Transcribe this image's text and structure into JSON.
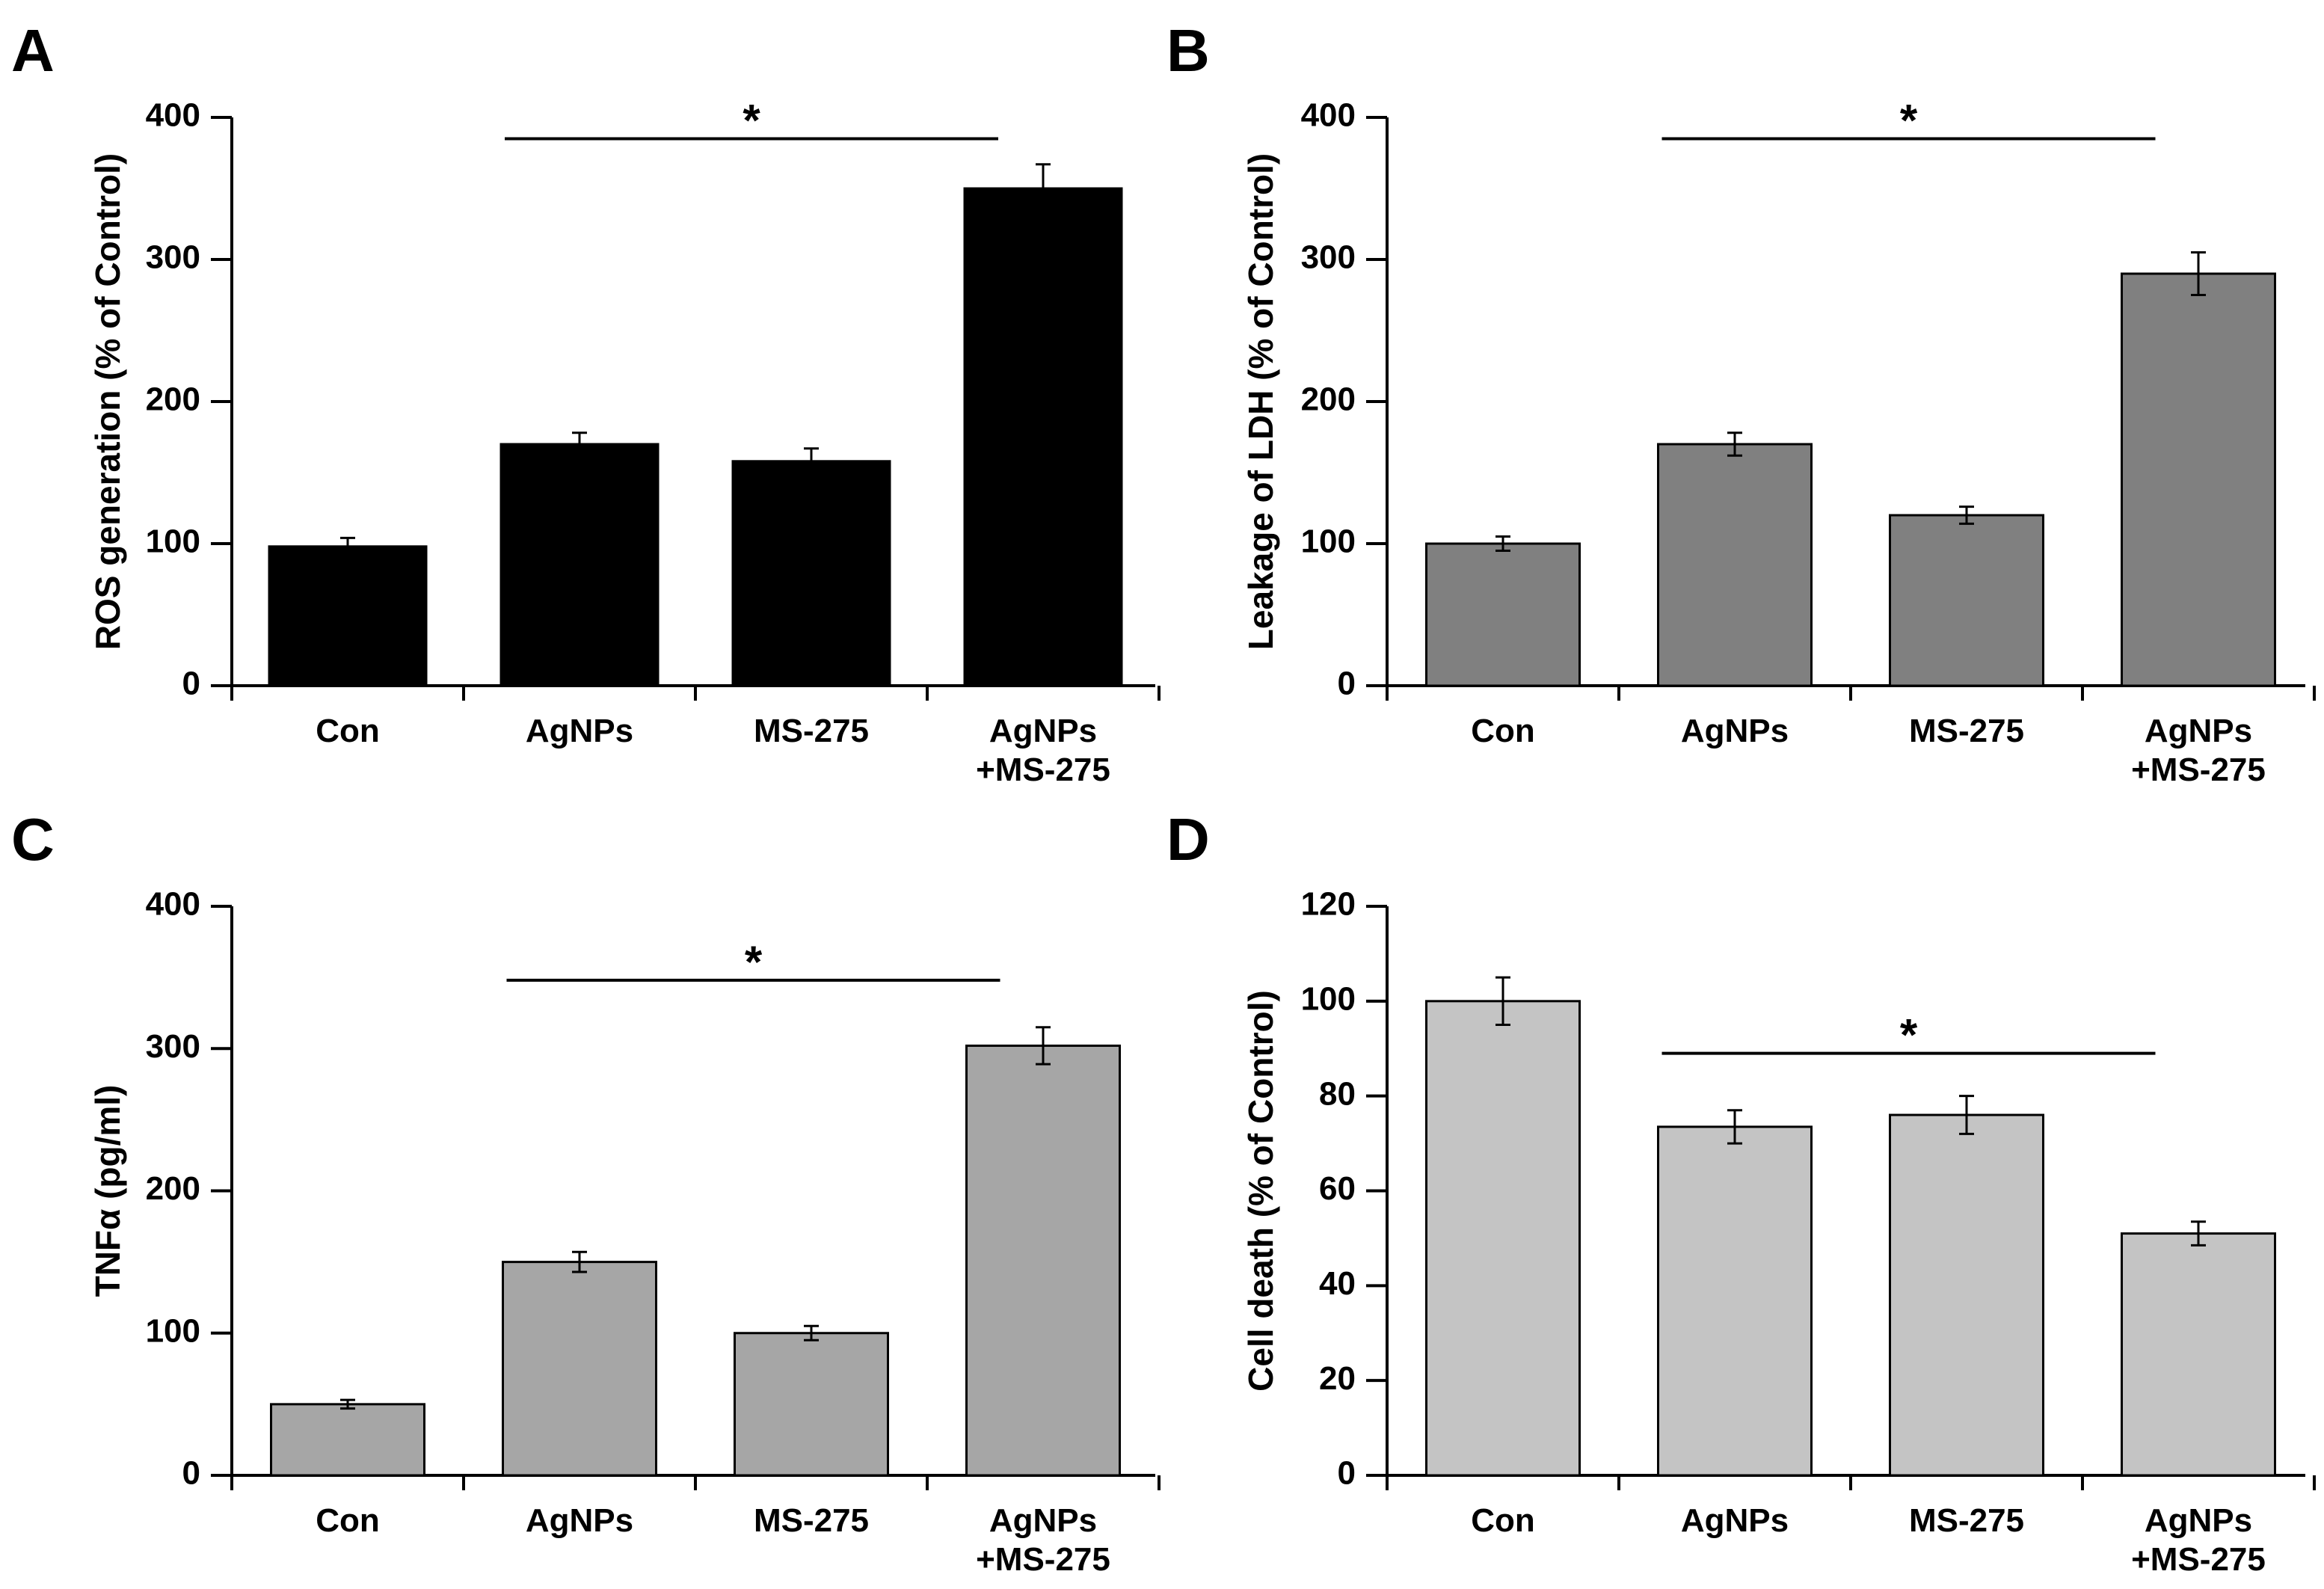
{
  "chart_data": [
    {
      "panel": "A",
      "type": "bar",
      "categories": [
        [
          "Con"
        ],
        [
          "AgNPs"
        ],
        [
          "MS-275"
        ],
        [
          "AgNPs",
          "+MS-275"
        ]
      ],
      "values": [
        98,
        170,
        158,
        350
      ],
      "errors": [
        6,
        8,
        9,
        17
      ],
      "ylabel": "ROS generation (% of Control)",
      "ylim": [
        0,
        400
      ],
      "yticks": [
        0,
        100,
        200,
        300,
        400
      ],
      "bar_color": "#000000",
      "significance": {
        "from": 1,
        "to": 3,
        "value": 385,
        "label": "*"
      }
    },
    {
      "panel": "B",
      "type": "bar",
      "categories": [
        [
          "Con"
        ],
        [
          "AgNPs"
        ],
        [
          "MS-275"
        ],
        [
          "AgNPs",
          "+MS-275"
        ]
      ],
      "values": [
        100,
        170,
        120,
        290
      ],
      "errors": [
        5,
        8,
        6,
        15
      ],
      "ylabel": "Leakage of LDH (% of Control)",
      "ylim": [
        0,
        400
      ],
      "yticks": [
        0,
        100,
        200,
        300,
        400
      ],
      "bar_color": "#808080",
      "significance": {
        "from": 1,
        "to": 3,
        "value": 385,
        "label": "*"
      }
    },
    {
      "panel": "C",
      "type": "bar",
      "categories": [
        [
          "Con"
        ],
        [
          "AgNPs"
        ],
        [
          "MS-275"
        ],
        [
          "AgNPs",
          "+MS-275"
        ]
      ],
      "values": [
        50,
        150,
        100,
        302
      ],
      "errors": [
        3,
        7,
        5,
        13
      ],
      "ylabel": "TNFα (pg/ml)",
      "ylim": [
        0,
        400
      ],
      "yticks": [
        0,
        100,
        200,
        300,
        400
      ],
      "bar_color": "#a6a6a6",
      "significance": {
        "from": 1,
        "to": 3,
        "value": 348,
        "label": "*"
      }
    },
    {
      "panel": "D",
      "type": "bar",
      "categories": [
        [
          "Con"
        ],
        [
          "AgNPs"
        ],
        [
          "MS-275"
        ],
        [
          "AgNPs",
          "+MS-275"
        ]
      ],
      "values": [
        100,
        73.5,
        76,
        51
      ],
      "errors": [
        5,
        3.5,
        4,
        2.5
      ],
      "ylabel": "Cell death (% of Control)",
      "ylim": [
        0,
        120
      ],
      "yticks": [
        0,
        20,
        40,
        60,
        80,
        100,
        120
      ],
      "bar_color": "#c4c4c4",
      "significance": {
        "from": 1,
        "to": 3,
        "value": 89,
        "label": "*"
      }
    }
  ]
}
